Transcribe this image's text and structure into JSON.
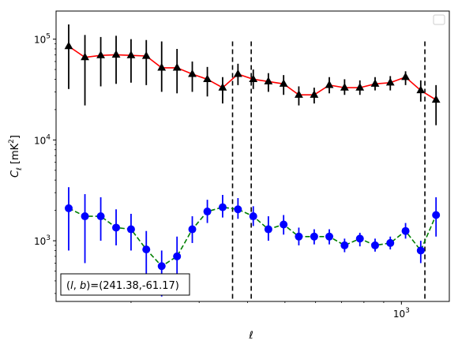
{
  "chart_data": {
    "type": "scatter",
    "title": "",
    "xlabel": "ℓ",
    "ylabel": "C_ℓ [mK²]",
    "x_scale": "log",
    "y_scale": "log",
    "xlim": [
      128,
      1330
    ],
    "ylim": [
      250,
      190000
    ],
    "x_ticks": [
      {
        "value": 1000,
        "label": "10",
        "sup": "3"
      }
    ],
    "y_ticks": [
      {
        "value": 1000,
        "label": "10",
        "sup": "3"
      },
      {
        "value": 10000,
        "label": "10",
        "sup": "4"
      },
      {
        "value": 100000,
        "label": "10",
        "sup": "5"
      }
    ],
    "vertical_lines": [
      366,
      409,
      1150
    ],
    "legend": {
      "placement": "top-right",
      "entries": []
    },
    "annotation": "(l, b)=(241.38,-61.17)",
    "x": [
      138,
      152,
      167,
      183,
      200,
      219,
      240,
      263,
      288,
      315,
      345,
      378,
      414,
      453,
      496,
      543,
      595,
      651,
      713,
      781,
      855,
      936,
      1025,
      1122,
      1229,
      1270
    ],
    "series": [
      {
        "color": "#000000",
        "line_color": "#ff0000",
        "marker": "triangle",
        "line_style": "solid",
        "values": [
          85000,
          66000,
          69000,
          70000,
          69000,
          68000,
          52000,
          52000,
          45000,
          40000,
          33000,
          45000,
          40000,
          38000,
          36000,
          28000,
          28000,
          35000,
          33000,
          33000,
          36000,
          37000,
          42000,
          31000,
          25000
        ],
        "err_low": [
          32000,
          22000,
          34000,
          36000,
          37000,
          35000,
          30000,
          29000,
          30000,
          27000,
          23000,
          35000,
          32000,
          30000,
          28000,
          22000,
          23000,
          29000,
          28000,
          28000,
          31000,
          31000,
          35000,
          24000,
          14000
        ],
        "err_high": [
          140000,
          110000,
          105000,
          108000,
          100000,
          98000,
          95000,
          80000,
          60000,
          53000,
          42000,
          57000,
          50000,
          46000,
          44000,
          34000,
          33000,
          42000,
          40000,
          39000,
          42000,
          43000,
          48000,
          39000,
          35000
        ]
      },
      {
        "color": "#0000ff",
        "line_color": "#008000",
        "marker": "circle",
        "line_style": "dashed",
        "values": [
          2100,
          1750,
          1750,
          1350,
          1300,
          820,
          560,
          700,
          1300,
          1950,
          2150,
          2050,
          1750,
          1300,
          1450,
          1100,
          1100,
          1100,
          900,
          1050,
          900,
          950,
          1250,
          800,
          1800
        ],
        "err_low": [
          800,
          600,
          1000,
          900,
          800,
          450,
          280,
          400,
          950,
          1500,
          1700,
          1650,
          1400,
          1000,
          1150,
          900,
          920,
          920,
          770,
          880,
          780,
          820,
          1050,
          600,
          1100
        ],
        "err_high": [
          3400,
          2900,
          2700,
          2050,
          1850,
          1250,
          800,
          1100,
          1750,
          2550,
          2850,
          2650,
          2200,
          1750,
          1800,
          1350,
          1300,
          1300,
          1050,
          1200,
          1050,
          1100,
          1500,
          1000,
          2700
        ]
      }
    ]
  }
}
